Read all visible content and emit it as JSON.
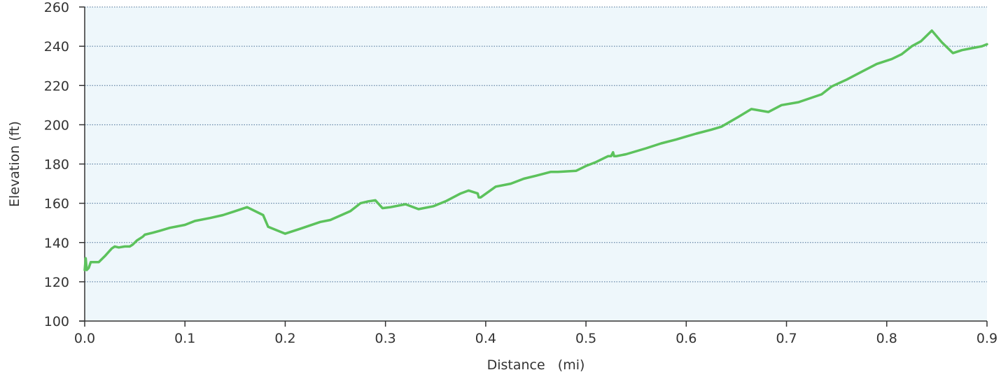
{
  "chart_data": {
    "type": "line",
    "title": "",
    "xlabel": "Distance   (mi)",
    "ylabel": "Elevation (ft)",
    "xlim": [
      0,
      0.9
    ],
    "ylim": [
      100,
      260
    ],
    "xticks": [
      "0.0",
      "0.1",
      "0.2",
      "0.3",
      "0.4",
      "0.5",
      "0.6",
      "0.7",
      "0.8",
      "0.9"
    ],
    "yticks": [
      "100",
      "120",
      "140",
      "160",
      "180",
      "200",
      "220",
      "240",
      "260"
    ],
    "grid": "horizontal-dotted",
    "colors": {
      "line": "#5cc25c",
      "grid": "#4a6f96",
      "axis": "#333333",
      "plot_background": "#eef7fb"
    },
    "series": [
      {
        "x": [
          0.0,
          0.001,
          0.002,
          0.004,
          0.006,
          0.009,
          0.014,
          0.02,
          0.027,
          0.03,
          0.034,
          0.04,
          0.045,
          0.048,
          0.052,
          0.058,
          0.06,
          0.068,
          0.075,
          0.085,
          0.1,
          0.11,
          0.125,
          0.138,
          0.15,
          0.162,
          0.178,
          0.183,
          0.2,
          0.215,
          0.235,
          0.245,
          0.265,
          0.275,
          0.283,
          0.29,
          0.297,
          0.305,
          0.32,
          0.333,
          0.348,
          0.36,
          0.375,
          0.383,
          0.392,
          0.393,
          0.395,
          0.41,
          0.425,
          0.438,
          0.45,
          0.465,
          0.472,
          0.49,
          0.5,
          0.51,
          0.518,
          0.522,
          0.525,
          0.527,
          0.528,
          0.53,
          0.54,
          0.56,
          0.575,
          0.59,
          0.6,
          0.61,
          0.625,
          0.635,
          0.652,
          0.665,
          0.682,
          0.695,
          0.712,
          0.735,
          0.745,
          0.76,
          0.775,
          0.79,
          0.805,
          0.815,
          0.825,
          0.834,
          0.845,
          0.855,
          0.866,
          0.875,
          0.885,
          0.895,
          0.9
        ],
        "y": [
          126,
          132,
          126,
          127,
          130,
          130,
          130,
          133,
          137,
          138,
          137.5,
          138,
          138,
          139,
          141,
          143,
          144,
          145,
          146,
          147.5,
          149,
          151,
          152.5,
          154,
          156,
          158,
          154,
          148,
          144.5,
          147,
          150.5,
          151.5,
          156,
          160,
          161,
          161.5,
          157.5,
          158,
          159.5,
          157,
          158.5,
          161,
          165,
          166.5,
          165,
          163,
          163,
          168.5,
          170,
          172.5,
          174,
          176,
          176,
          176.5,
          179,
          181,
          183,
          184,
          184,
          186,
          184,
          184,
          185,
          188,
          190.5,
          192.5,
          194,
          195.5,
          197.5,
          199,
          204,
          208,
          206.5,
          210,
          211.5,
          215.5,
          219.5,
          223,
          227,
          231,
          233.5,
          236,
          240,
          242.5,
          248,
          242,
          236.5,
          238,
          239,
          240,
          241
        ]
      }
    ]
  }
}
